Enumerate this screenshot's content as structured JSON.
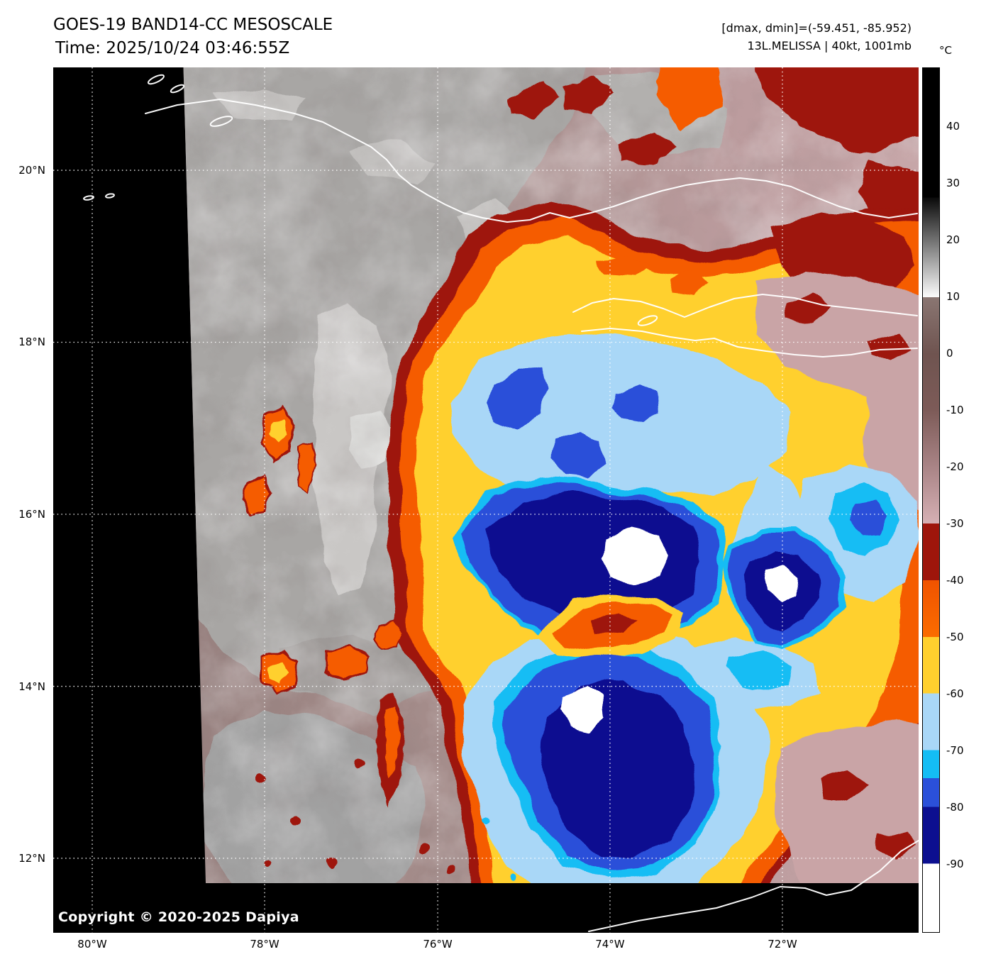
{
  "header": {
    "title": "GOES-19 BAND14-CC MESOSCALE",
    "time": "Time: 2025/10/24 03:46:55Z",
    "range_info": "[dmax, dmin]=(-59.451, -85.952)",
    "storm_info": "13L.MELISSA | 40kt, 1001mb"
  },
  "colorbar": {
    "unit": "°C",
    "ticks": [
      {
        "label": "40",
        "f": 0.0682
      },
      {
        "label": "30",
        "f": 0.1338
      },
      {
        "label": "20",
        "f": 0.1993
      },
      {
        "label": "10",
        "f": 0.2649
      },
      {
        "label": "0",
        "f": 0.3305
      },
      {
        "label": "-10",
        "f": 0.3961
      },
      {
        "label": "-20",
        "f": 0.4616
      },
      {
        "label": "-30",
        "f": 0.5272
      },
      {
        "label": "-40",
        "f": 0.5928
      },
      {
        "label": "-50",
        "f": 0.6584
      },
      {
        "label": "-60",
        "f": 0.7239
      },
      {
        "label": "-70",
        "f": 0.7895
      },
      {
        "label": "-80",
        "f": 0.8551
      },
      {
        "label": "-90",
        "f": 0.9207
      }
    ],
    "segments": [
      {
        "f0": 0.0,
        "f1": 0.15,
        "c0": "#000000",
        "c1": "#000000"
      },
      {
        "f0": 0.15,
        "f1": 0.265,
        "c0": "#0a0a0a",
        "c1": "#fbfbfb"
      },
      {
        "f0": 0.265,
        "f1": 0.3305,
        "c0": "#8a7672",
        "c1": "#6f5450"
      },
      {
        "f0": 0.3305,
        "f1": 0.3961,
        "c0": "#6f5450",
        "c1": "#7d5b58"
      },
      {
        "f0": 0.3961,
        "f1": 0.4616,
        "c0": "#7d5b58",
        "c1": "#a98486"
      },
      {
        "f0": 0.4616,
        "f1": 0.5272,
        "c0": "#a98486",
        "c1": "#d6b0b4"
      },
      {
        "f0": 0.5272,
        "f1": 0.5928,
        "c0": "#9e150b",
        "c1": "#9e150b"
      },
      {
        "f0": 0.5928,
        "f1": 0.6584,
        "c0": "#f05300",
        "c1": "#fb6c00"
      },
      {
        "f0": 0.6584,
        "f1": 0.7239,
        "c0": "#ffd02e",
        "c1": "#ffd02e"
      },
      {
        "f0": 0.7239,
        "f1": 0.7895,
        "c0": "#a9d7f7",
        "c1": "#a9d7f7"
      },
      {
        "f0": 0.7895,
        "f1": 0.822,
        "c0": "#14bdf4",
        "c1": "#14bdf4"
      },
      {
        "f0": 0.822,
        "f1": 0.8551,
        "c0": "#2b50d9",
        "c1": "#2b50d9"
      },
      {
        "f0": 0.8551,
        "f1": 0.9207,
        "c0": "#0c0f90",
        "c1": "#0c0f90"
      },
      {
        "f0": 0.9207,
        "f1": 1.0,
        "c0": "#ffffff",
        "c1": "#ffffff"
      }
    ]
  },
  "map": {
    "lat_gridlines": [
      {
        "label": "20°N",
        "f": 0.1189
      },
      {
        "label": "18°N",
        "f": 0.3176
      },
      {
        "label": "16°N",
        "f": 0.5164
      },
      {
        "label": "14°N",
        "f": 0.7152
      },
      {
        "label": "12°N",
        "f": 0.9139
      }
    ],
    "lon_gridlines": [
      {
        "label": "80°W",
        "f": 0.0451
      },
      {
        "label": "78°W",
        "f": 0.2443
      },
      {
        "label": "76°W",
        "f": 0.4443
      },
      {
        "label": "74°W",
        "f": 0.6434
      },
      {
        "label": "72°W",
        "f": 0.8426
      }
    ]
  },
  "footer": {
    "copyright": "Copyright © 2020-2025 Dapiya"
  }
}
